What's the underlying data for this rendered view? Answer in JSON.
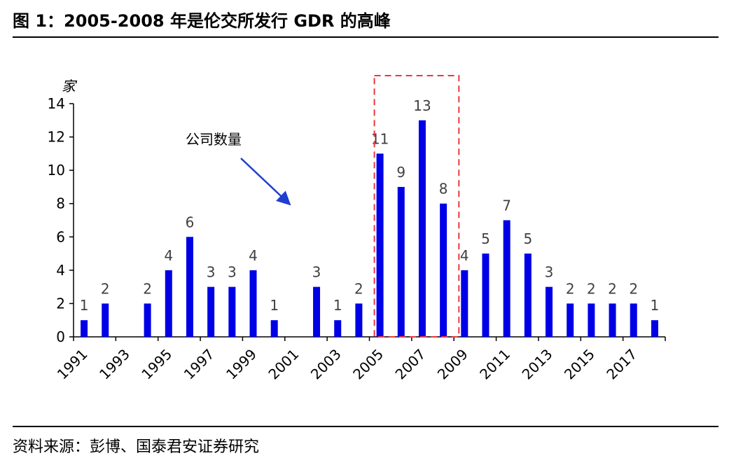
{
  "header": {
    "title": "图 1：2005-2008 年是伦交所发行 GDR 的高峰"
  },
  "footer": {
    "source": "资料来源：彭博、国泰君安证券研究"
  },
  "annotation": {
    "label": "公司数量"
  },
  "colors": {
    "bar": "#0000e6",
    "highlight_box": "#e8383d",
    "arrow": "#1f3fd0",
    "text": "#000000",
    "value_label": "#404040"
  },
  "chart_data": {
    "type": "bar",
    "title": "",
    "ylabel": "家",
    "xlabel": "",
    "ylim": [
      0,
      14
    ],
    "yticks": [
      0,
      2,
      4,
      6,
      8,
      10,
      12,
      14
    ],
    "grid": false,
    "x": [
      "1991",
      "1992",
      "1993",
      "1994",
      "1995",
      "1996",
      "1997",
      "1998",
      "1999",
      "2000",
      "2001",
      "2002",
      "2003",
      "2004",
      "2005",
      "2006",
      "2007",
      "2008",
      "2009",
      "2010",
      "2011",
      "2012",
      "2013",
      "2014",
      "2015",
      "2016",
      "2017",
      "2018"
    ],
    "values": [
      1,
      2,
      0,
      2,
      4,
      6,
      3,
      3,
      4,
      1,
      0,
      3,
      1,
      2,
      11,
      9,
      13,
      8,
      4,
      5,
      7,
      5,
      3,
      2,
      2,
      2,
      2,
      1
    ],
    "xtick_labels": [
      "1991",
      "1993",
      "1995",
      "1997",
      "1999",
      "2001",
      "2003",
      "2005",
      "2007",
      "2009",
      "2011",
      "2013",
      "2015",
      "2017"
    ],
    "highlight_range": [
      "2005",
      "2008"
    ]
  }
}
